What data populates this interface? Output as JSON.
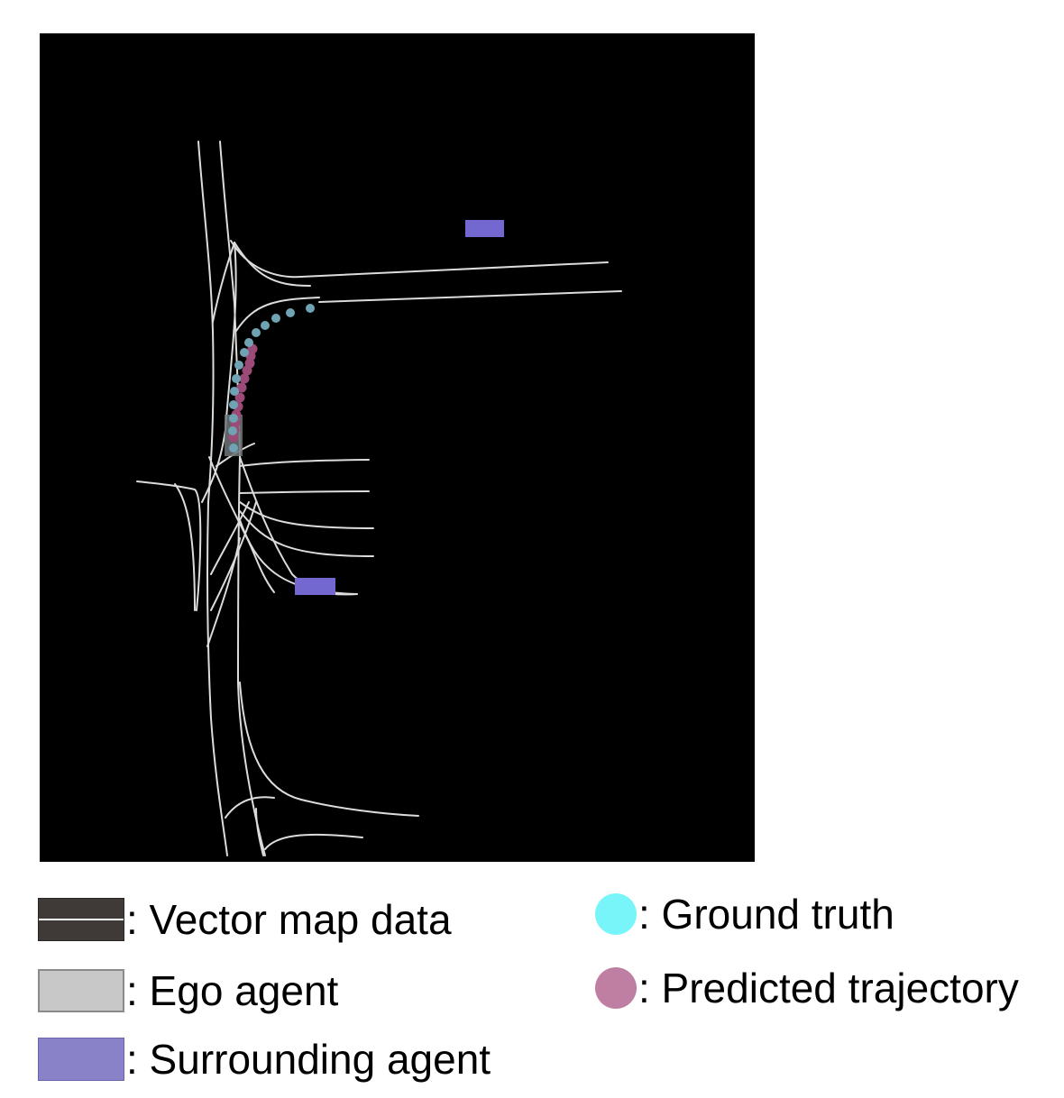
{
  "colors": {
    "background": "#000000",
    "lane": "#dcdcdc",
    "vector_map": "#3f3a38",
    "ego_agent": "#c8c8c8",
    "ego_box": "#6e7478",
    "surrounding_agent": "#7368d0",
    "surrounding_agent_legend": "#8a82c8",
    "ground_truth": "#6fa3b3",
    "ground_truth_legend": "#77f5f8",
    "predicted": "#9c4a78",
    "predicted_legend": "#bf7fa2"
  },
  "legend": {
    "vector_map": ": Vector map data",
    "ego_agent": ": Ego agent",
    "surrounding_agent": ": Surrounding agent",
    "ground_truth": ": Ground truth",
    "predicted": ": Predicted trajectory"
  },
  "icons": {
    "vector_map": "two-lane-swatch-icon",
    "ego_agent": "ego-box-icon",
    "surrounding_agent": "agent-box-icon",
    "ground_truth": "dot-icon",
    "predicted": "dot-icon"
  }
}
